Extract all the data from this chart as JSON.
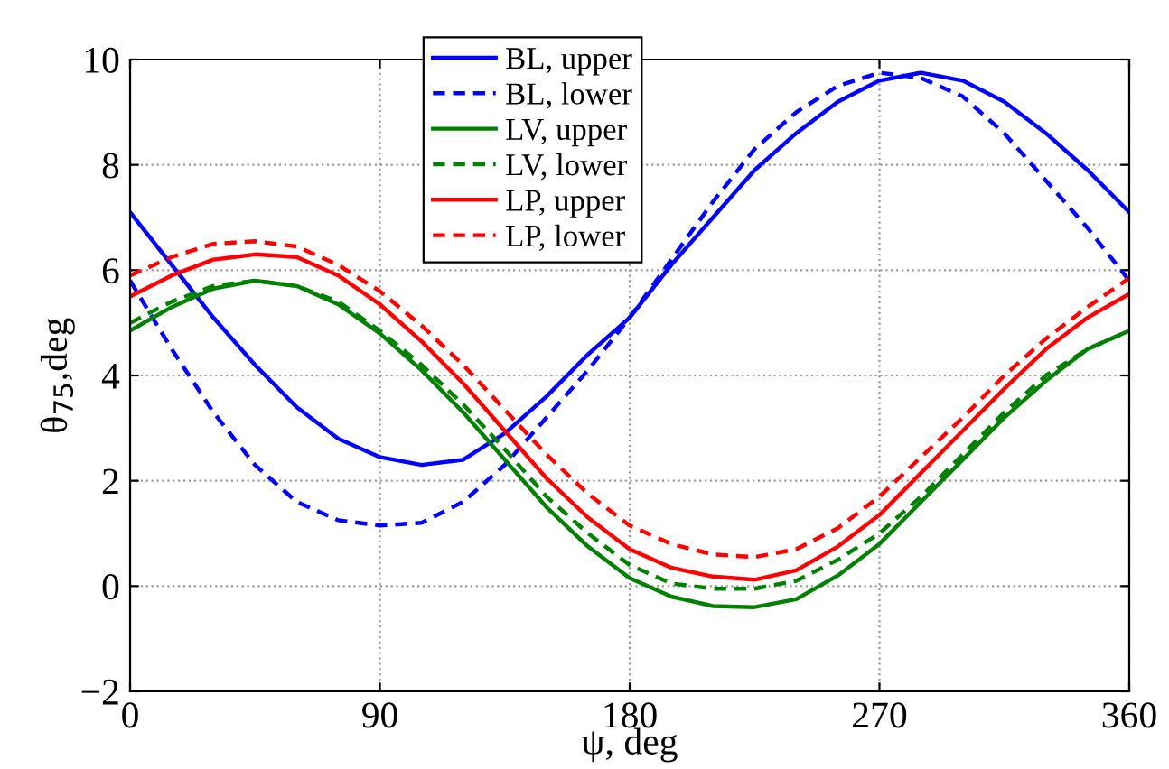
{
  "chart_data": {
    "type": "line",
    "xlabel": "ψ, deg",
    "ylabel": "θ$_{75}$,deg",
    "x": [
      0,
      15,
      30,
      45,
      60,
      75,
      90,
      105,
      120,
      135,
      150,
      165,
      180,
      195,
      210,
      225,
      240,
      255,
      270,
      285,
      300,
      315,
      330,
      345,
      360
    ],
    "xlim": [
      0,
      360
    ],
    "xticks": [
      0,
      90,
      180,
      270,
      360
    ],
    "ylim": [
      -2,
      10
    ],
    "yticks": [
      {
        "value": -2,
        "label": "−2"
      },
      0,
      2,
      4,
      6,
      8,
      10
    ],
    "grid": true,
    "legend": "top",
    "marker": "none",
    "series": [
      {
        "name": "BL, upper",
        "color": "#0000ff",
        "line_style": "solid",
        "values": [
          7.1,
          6.1,
          5.1,
          4.2,
          3.4,
          2.8,
          2.45,
          2.3,
          2.4,
          2.9,
          3.6,
          4.4,
          5.1,
          6.1,
          7.0,
          7.9,
          8.6,
          9.2,
          9.6,
          9.75,
          9.6,
          9.2,
          8.6,
          7.9,
          7.1
        ]
      },
      {
        "name": "BL, lower",
        "color": "#0000ff",
        "line_style": "dashed",
        "values": [
          5.8,
          4.5,
          3.3,
          2.3,
          1.6,
          1.25,
          1.15,
          1.2,
          1.6,
          2.3,
          3.2,
          4.1,
          5.1,
          6.2,
          7.3,
          8.3,
          9.0,
          9.5,
          9.75,
          9.65,
          9.3,
          8.6,
          7.7,
          6.8,
          5.8
        ]
      },
      {
        "name": "LV, upper",
        "color": "#008000",
        "line_style": "solid",
        "values": [
          4.85,
          5.3,
          5.65,
          5.8,
          5.7,
          5.35,
          4.8,
          4.1,
          3.3,
          2.4,
          1.5,
          0.75,
          0.15,
          -0.2,
          -0.38,
          -0.4,
          -0.25,
          0.2,
          0.8,
          1.6,
          2.4,
          3.2,
          3.9,
          4.5,
          4.85
        ]
      },
      {
        "name": "LV, lower",
        "color": "#008000",
        "line_style": "dashed",
        "values": [
          5.0,
          5.4,
          5.7,
          5.8,
          5.7,
          5.4,
          4.85,
          4.2,
          3.45,
          2.6,
          1.7,
          1.0,
          0.4,
          0.05,
          -0.05,
          -0.05,
          0.1,
          0.5,
          1.0,
          1.7,
          2.5,
          3.3,
          4.0,
          4.5,
          4.85
        ]
      },
      {
        "name": "LP, upper",
        "color": "#ff0000",
        "line_style": "solid",
        "values": [
          5.5,
          5.9,
          6.2,
          6.3,
          6.25,
          5.9,
          5.35,
          4.65,
          3.85,
          2.95,
          2.05,
          1.3,
          0.7,
          0.35,
          0.18,
          0.12,
          0.3,
          0.75,
          1.35,
          2.15,
          2.95,
          3.75,
          4.5,
          5.1,
          5.55
        ]
      },
      {
        "name": "LP, lower",
        "color": "#ff0000",
        "line_style": "dashed",
        "values": [
          5.9,
          6.25,
          6.5,
          6.55,
          6.45,
          6.1,
          5.6,
          4.95,
          4.2,
          3.35,
          2.5,
          1.75,
          1.15,
          0.8,
          0.6,
          0.55,
          0.7,
          1.1,
          1.7,
          2.45,
          3.2,
          4.0,
          4.7,
          5.3,
          5.85
        ]
      }
    ]
  }
}
